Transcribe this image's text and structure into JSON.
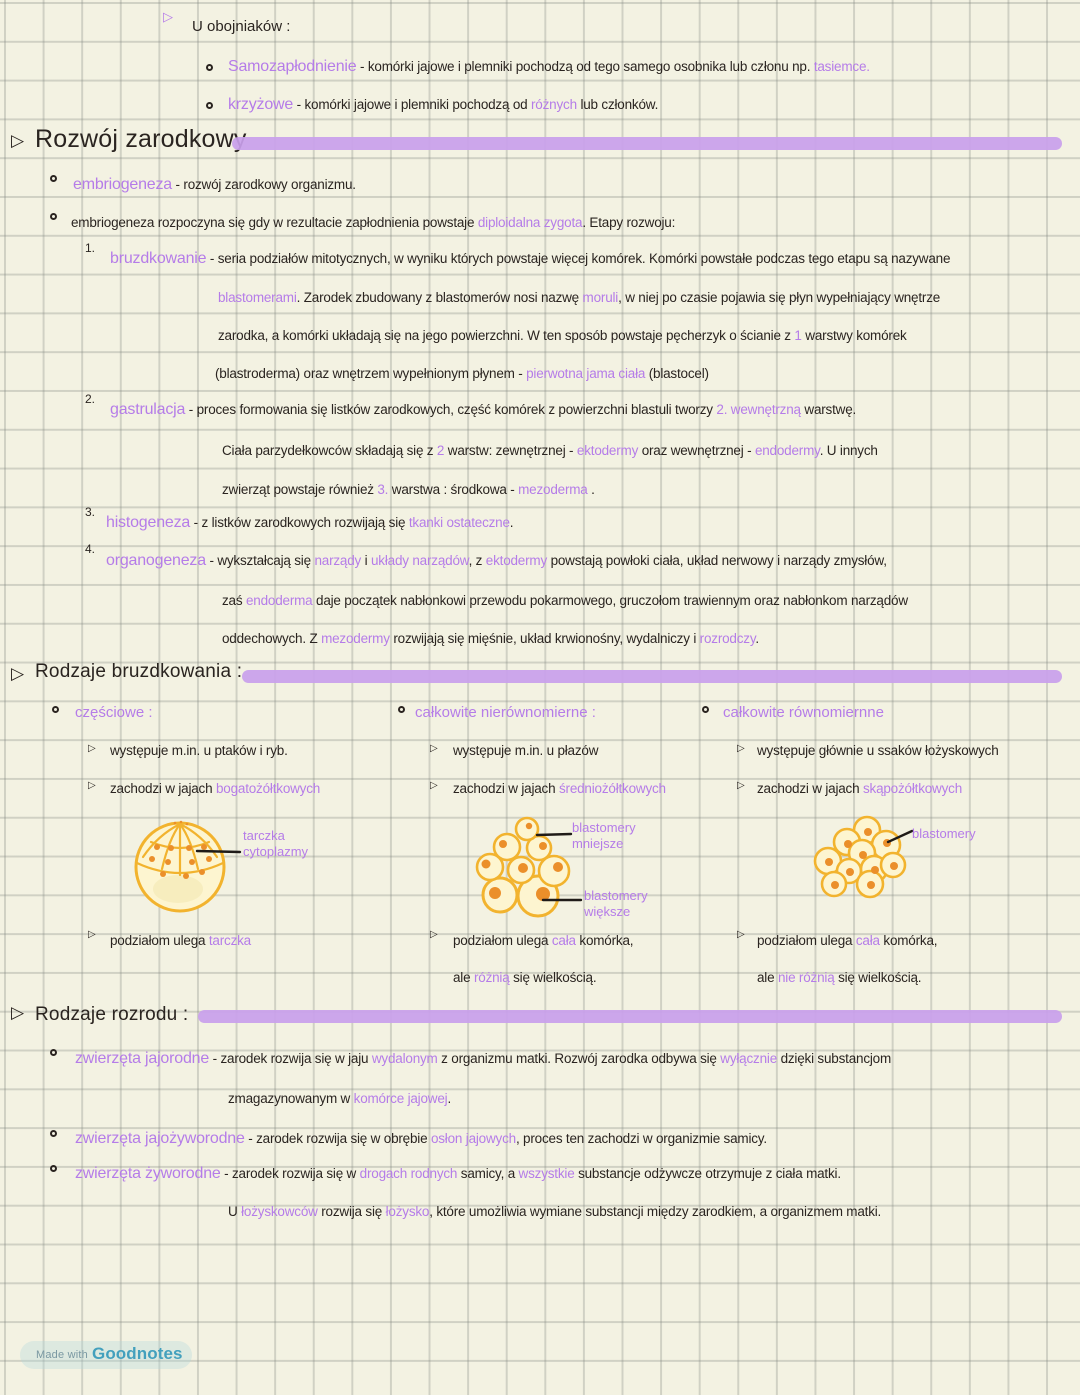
{
  "colors": {
    "background": "#f3f2e2",
    "grid": "#b9bcb2",
    "ink": "#2a2420",
    "purple": "#b57ce8",
    "highlighter": "#c9a0ec",
    "cell_outline": "#f2b32e",
    "cell_fill": "#fdf5d0",
    "cell_nucleus": "#eb8f2a",
    "badge_teal": "#43a0bd"
  },
  "icons": {
    "section_bullet": "▷",
    "item_bullet": "▷"
  },
  "intro": {
    "heading": "U obojniaków :",
    "lines": [
      {
        "segments": [
          {
            "t": "Samozapłodnienie",
            "c": "pb"
          },
          {
            "t": " - komórki jajowe i plemniki pochodzą od tego samego osobnika lub członu np. ",
            "c": "k"
          },
          {
            "t": "tasiemce.",
            "c": "p"
          }
        ]
      },
      {
        "segments": [
          {
            "t": "krzyżowe",
            "c": "pb"
          },
          {
            "t": " - komórki jajowe i plemniki pochodzą od ",
            "c": "k"
          },
          {
            "t": "różnych",
            "c": "p"
          },
          {
            "t": " lub członków.",
            "c": "k"
          }
        ]
      }
    ]
  },
  "development": {
    "title": "Rozwój zarodkowy",
    "numbers": [
      "1.",
      "2.",
      "3.",
      "4."
    ],
    "lines": [
      {
        "segments": [
          {
            "t": "embriogeneza",
            "c": "pb"
          },
          {
            "t": " - rozwój zarodkowy organizmu.",
            "c": "k"
          }
        ]
      },
      {
        "segments": [
          {
            "t": "embriogeneza rozpoczyna się gdy w rezultacie zapłodnienia powstaje ",
            "c": "k"
          },
          {
            "t": "diploidalna zygota",
            "c": "p"
          },
          {
            "t": ". Etapy rozwoju:",
            "c": "k"
          }
        ]
      },
      {
        "segments": [
          {
            "t": "bruzdkowanie",
            "c": "pb"
          },
          {
            "t": " - seria podziałów mitotycznych, w wyniku których powstaje więcej komórek. Komórki powstałe podczas tego etapu są nazywane",
            "c": "k"
          }
        ]
      },
      {
        "segments": [
          {
            "t": "blastomerami",
            "c": "p"
          },
          {
            "t": ". Zarodek zbudowany z blastomerów nosi nazwę ",
            "c": "k"
          },
          {
            "t": "moruli",
            "c": "p"
          },
          {
            "t": ", w niej po czasie pojawia się płyn wypełniający wnętrze",
            "c": "k"
          }
        ]
      },
      {
        "segments": [
          {
            "t": "zarodka, a komórki układają się na jego powierzchni. W ten sposób powstaje pęcherzyk o ścianie z ",
            "c": "k"
          },
          {
            "t": "1",
            "c": "p"
          },
          {
            "t": " warstwy komórek",
            "c": "k"
          }
        ]
      },
      {
        "segments": [
          {
            "t": "(blastroderma) oraz wnętrzem wypełnionym płynem - ",
            "c": "k"
          },
          {
            "t": "pierwotna jama ciała",
            "c": "p"
          },
          {
            "t": " (blastocel)",
            "c": "k"
          }
        ]
      },
      {
        "segments": [
          {
            "t": "gastrulacja",
            "c": "pb"
          },
          {
            "t": " - proces formowania się listków zarodkowych, część komórek z powierzchni blastuli tworzy ",
            "c": "k"
          },
          {
            "t": "2. wewnętrzną",
            "c": "p"
          },
          {
            "t": " warstwę.",
            "c": "k"
          }
        ]
      },
      {
        "segments": [
          {
            "t": "Ciała parzydełkowców składają się z ",
            "c": "k"
          },
          {
            "t": "2",
            "c": "p"
          },
          {
            "t": " warstw: zewnętrznej - ",
            "c": "k"
          },
          {
            "t": "ektodermy",
            "c": "p"
          },
          {
            "t": " oraz wewnętrznej - ",
            "c": "k"
          },
          {
            "t": "endodermy",
            "c": "p"
          },
          {
            "t": ". U innych",
            "c": "k"
          }
        ]
      },
      {
        "segments": [
          {
            "t": "zwierząt powstaje również ",
            "c": "k"
          },
          {
            "t": "3.",
            "c": "p"
          },
          {
            "t": " warstwa : środkowa - ",
            "c": "k"
          },
          {
            "t": "mezoderma",
            "c": "p"
          },
          {
            "t": " .",
            "c": "k"
          }
        ]
      },
      {
        "segments": [
          {
            "t": "histogeneza",
            "c": "pb"
          },
          {
            "t": " - z listków zarodkowych rozwijają się ",
            "c": "k"
          },
          {
            "t": "tkanki ostateczne",
            "c": "p"
          },
          {
            "t": ".",
            "c": "k"
          }
        ]
      },
      {
        "segments": [
          {
            "t": "organogeneza",
            "c": "pb"
          },
          {
            "t": " - wykształcają się ",
            "c": "k"
          },
          {
            "t": "narządy",
            "c": "p"
          },
          {
            "t": " i ",
            "c": "k"
          },
          {
            "t": "układy narządów",
            "c": "p"
          },
          {
            "t": ", z ",
            "c": "k"
          },
          {
            "t": "ektodermy",
            "c": "p"
          },
          {
            "t": " powstają powłoki ciała, układ nerwowy i narządy zmysłów,",
            "c": "k"
          }
        ]
      },
      {
        "segments": [
          {
            "t": "zaś ",
            "c": "k"
          },
          {
            "t": "endoderma",
            "c": "p"
          },
          {
            "t": " daje początek nabłonkowi przewodu pokarmowego, gruczołom trawiennym oraz nabłonkom narządów",
            "c": "k"
          }
        ]
      },
      {
        "segments": [
          {
            "t": "oddechowych. Z ",
            "c": "k"
          },
          {
            "t": "mezodermy",
            "c": "p"
          },
          {
            "t": " rozwijają się mięśnie, układ krwionośny, wydalniczy i ",
            "c": "k"
          },
          {
            "t": "rozrodczy",
            "c": "p"
          },
          {
            "t": ".",
            "c": "k"
          }
        ]
      }
    ]
  },
  "cleavage": {
    "title": "Rodzaje bruzdkowania :",
    "columns": [
      {
        "label": "częściowe :",
        "lines": [
          {
            "segments": [
              {
                "t": "występuje m.in. u ptaków i ryb.",
                "c": "k"
              }
            ]
          },
          {
            "segments": [
              {
                "t": "zachodzi w jajach ",
                "c": "k"
              },
              {
                "t": "bogatożółtkowych",
                "c": "p"
              }
            ]
          }
        ],
        "diagram_label": [
          "tarczka",
          "cytoplazmy"
        ],
        "bottom_lines": [
          {
            "segments": [
              {
                "t": "podziałom ulega ",
                "c": "k"
              },
              {
                "t": "tarczka",
                "c": "p"
              }
            ]
          }
        ]
      },
      {
        "label": "całkowite nierównomierne :",
        "lines": [
          {
            "segments": [
              {
                "t": "występuje m.in. u płazów",
                "c": "k"
              }
            ]
          },
          {
            "segments": [
              {
                "t": "zachodzi w jajach ",
                "c": "k"
              },
              {
                "t": "średniożółtkowych",
                "c": "p"
              }
            ]
          }
        ],
        "diagram_label_top": [
          "blastomery",
          "mniejsze"
        ],
        "diagram_label_bottom": [
          "blastomery",
          "większe"
        ],
        "bottom_lines": [
          {
            "segments": [
              {
                "t": "podziałom ulega ",
                "c": "k"
              },
              {
                "t": "cała",
                "c": "p"
              },
              {
                "t": " komórka,",
                "c": "k"
              }
            ]
          },
          {
            "segments": [
              {
                "t": "ale ",
                "c": "k"
              },
              {
                "t": "różnią",
                "c": "p"
              },
              {
                "t": " się wielkością.",
                "c": "k"
              }
            ]
          }
        ]
      },
      {
        "label": "całkowite równomiernne",
        "lines": [
          {
            "segments": [
              {
                "t": "występuje głównie u ssaków łożyskowych",
                "c": "k"
              }
            ]
          },
          {
            "segments": [
              {
                "t": "zachodzi w jajach ",
                "c": "k"
              },
              {
                "t": "skąpożółtkowych",
                "c": "p"
              }
            ]
          }
        ],
        "diagram_label": [
          "blastomery"
        ],
        "bottom_lines": [
          {
            "segments": [
              {
                "t": "podziałom ulega ",
                "c": "k"
              },
              {
                "t": "cała",
                "c": "p"
              },
              {
                "t": " komórka,",
                "c": "k"
              }
            ]
          },
          {
            "segments": [
              {
                "t": "ale ",
                "c": "k"
              },
              {
                "t": "nie różnią",
                "c": "p"
              },
              {
                "t": " się wielkością.",
                "c": "k"
              }
            ]
          }
        ]
      }
    ]
  },
  "reproduction": {
    "title": "Rodzaje rozrodu :",
    "lines": [
      {
        "segments": [
          {
            "t": "zwierzęta jajorodne",
            "c": "pb"
          },
          {
            "t": " - zarodek rozwija się w jaju ",
            "c": "k"
          },
          {
            "t": "wydalonym",
            "c": "p"
          },
          {
            "t": " z organizmu matki. Rozwój zarodka odbywa się ",
            "c": "k"
          },
          {
            "t": "wyłącznie",
            "c": "p"
          },
          {
            "t": " dzięki substancjom",
            "c": "k"
          }
        ]
      },
      {
        "segments": [
          {
            "t": "zmagazynowanym w ",
            "c": "k"
          },
          {
            "t": "komórce jajowej",
            "c": "p"
          },
          {
            "t": ".",
            "c": "k"
          }
        ]
      },
      {
        "segments": [
          {
            "t": "zwierzęta jajożyworodne",
            "c": "pb"
          },
          {
            "t": " - zarodek rozwija się w obrębie ",
            "c": "k"
          },
          {
            "t": "osłon jajowych",
            "c": "p"
          },
          {
            "t": ", proces ten zachodzi w organizmie samicy.",
            "c": "k"
          }
        ]
      },
      {
        "segments": [
          {
            "t": "zwierzęta żyworodne",
            "c": "pb"
          },
          {
            "t": " - zarodek rozwija się w ",
            "c": "k"
          },
          {
            "t": "drogach rodnych",
            "c": "p"
          },
          {
            "t": " samicy, a ",
            "c": "k"
          },
          {
            "t": "wszystkie",
            "c": "p"
          },
          {
            "t": " substancje odżywcze otrzymuje z ciała matki.",
            "c": "k"
          }
        ]
      },
      {
        "segments": [
          {
            "t": "U ",
            "c": "k"
          },
          {
            "t": "łożyskowców",
            "c": "p"
          },
          {
            "t": " rozwija się ",
            "c": "k"
          },
          {
            "t": "łożysko",
            "c": "p"
          },
          {
            "t": ", które umożliwia wymiane substancji między zarodkiem, a organizmem matki.",
            "c": "k"
          }
        ]
      }
    ]
  },
  "badge": {
    "made_with": "Made with",
    "app_name": "Goodnotes"
  }
}
